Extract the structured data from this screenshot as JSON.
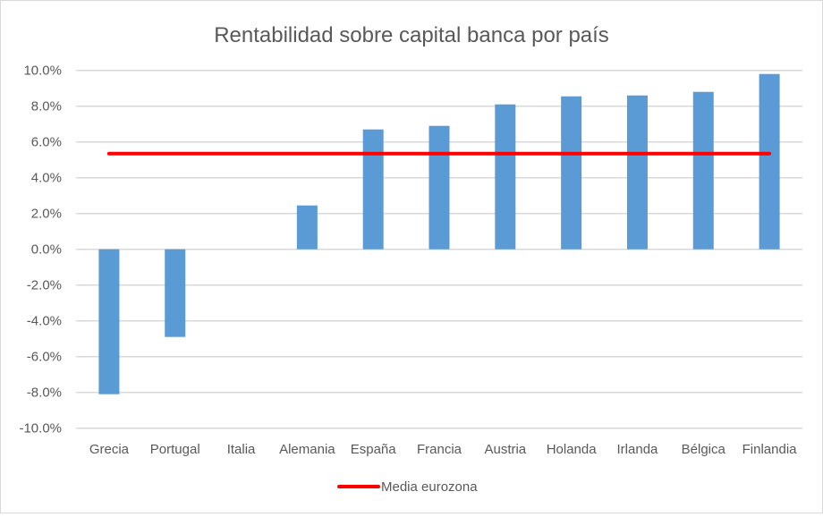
{
  "chart_data": {
    "type": "bar",
    "title": "Rentabilidad sobre capital banca por país",
    "categories": [
      "Grecia",
      "Portugal",
      "Italia",
      "Alemania",
      "España",
      "Francia",
      "Austria",
      "Holanda",
      "Irlanda",
      "Bélgica",
      "Finlandia"
    ],
    "values": [
      -8.1,
      -4.9,
      0.0,
      2.45,
      6.7,
      6.9,
      8.1,
      8.55,
      8.6,
      8.8,
      9.8
    ],
    "unit": "%",
    "ylim": [
      -10,
      10
    ],
    "yticks": [
      "10.0%",
      "8.0%",
      "6.0%",
      "4.0%",
      "2.0%",
      "0.0%",
      "-2.0%",
      "-4.0%",
      "-6.0%",
      "-8.0%",
      "-10.0%"
    ],
    "ytick_values": [
      10,
      8,
      6,
      4,
      2,
      0,
      -2,
      -4,
      -6,
      -8,
      -10
    ],
    "grid": true,
    "reference_line": {
      "name": "Media eurozona",
      "value": 5.35,
      "color": "#ff0000"
    },
    "bar_color": "#5b9bd5",
    "legend": {
      "placement": "bottom",
      "entries": [
        "Media eurozona"
      ]
    }
  }
}
